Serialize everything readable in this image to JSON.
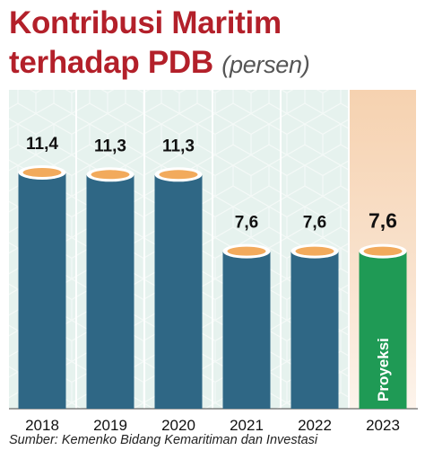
{
  "title_line1": "Kontribusi Maritim",
  "title_line2": "terhadap PDB",
  "title_unit": "(persen)",
  "source": "Sumber: Kemenko Bidang Kemaritiman dan Investasi",
  "colors": {
    "title": "#b3202a",
    "bar_actual": "#2f6785",
    "bar_projection": "#1f9a55",
    "bar_top": "#f2aa5c",
    "bg_panel": "#e6f2ee",
    "bg_projection": "#f8dcc2"
  },
  "chart_data": {
    "type": "bar",
    "categories": [
      "2018",
      "2019",
      "2020",
      "2021",
      "2022",
      "2023"
    ],
    "values": [
      11.4,
      11.3,
      11.3,
      7.6,
      7.6,
      7.6
    ],
    "value_labels": [
      "11,4",
      "11,3",
      "11,3",
      "7,6",
      "7,6",
      "7,6"
    ],
    "projection_index": 5,
    "projection_label": "Proyeksi",
    "ylim": [
      0,
      11.4
    ],
    "title": "Kontribusi Maritim terhadap PDB",
    "ylabel": "(persen)"
  }
}
